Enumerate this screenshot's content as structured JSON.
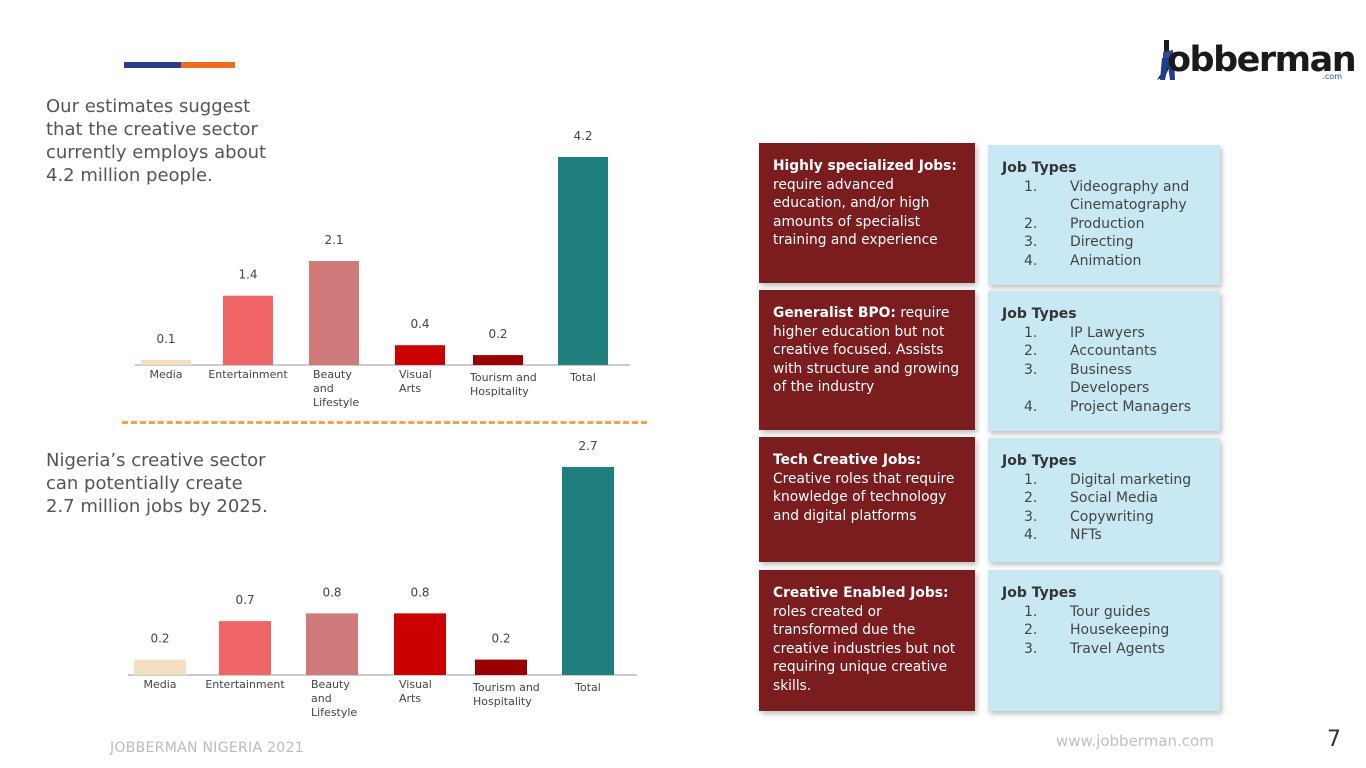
{
  "intro": {
    "text1": "Our estimates suggest that the creative sector currently employs about 4.2 million people.",
    "text2": "Nigeria’s creative sector can potentially create 2.7 million jobs by 2025."
  },
  "colors": {
    "media": "#f5dfc2",
    "entertainment": "#f06666",
    "beauty": "#cf7b7b",
    "visual_arts": "#cc0000",
    "tourism": "#990000",
    "total": "#1f7f7c",
    "card_red": "#7b1c1f",
    "card_blue": "#c8e8f3"
  },
  "logo": {
    "text": "obberman",
    "com": ".com"
  },
  "chart_data": [
    {
      "type": "bar",
      "categories": [
        "Media",
        "Entertainment",
        "Beauty and Lifestyle",
        "Visual Arts",
        "Tourism and Hospitality",
        "Total"
      ],
      "values": [
        0.1,
        1.4,
        2.1,
        0.4,
        0.2,
        4.2
      ],
      "value_labels": [
        "0.1",
        "1.4",
        "2.1",
        "0.4",
        "0.2",
        "4.2"
      ],
      "ylim": [
        0,
        4.2
      ],
      "grid": false
    },
    {
      "type": "bar",
      "categories": [
        "Media",
        "Entertainment",
        "Beauty and Lifestyle",
        "Visual Arts",
        "Tourism and Hospitality",
        "Total"
      ],
      "values": [
        0.2,
        0.7,
        0.8,
        0.8,
        0.2,
        2.7
      ],
      "value_labels": [
        "0.2",
        "0.7",
        "0.8",
        "0.8",
        "0.2",
        "2.7"
      ],
      "ylim": [
        0,
        2.7
      ],
      "grid": false
    }
  ],
  "cards": [
    {
      "title": "Highly specialized Jobs:",
      "desc": "require advanced education, and/or high amounts of specialist training and experience",
      "job_types_label": "Job Types",
      "jobs": [
        {
          "num": "1.",
          "text": "Videography and Cinematography"
        },
        {
          "num": "2.",
          "text": "Production"
        },
        {
          "num": "3.",
          "text": "Directing"
        },
        {
          "num": "4.",
          "text": "Animation"
        }
      ]
    },
    {
      "title": "Generalist BPO:",
      "desc": "require higher education but not creative focused. Assists with structure and growing of the industry",
      "job_types_label": "Job Types",
      "jobs": [
        {
          "num": "1.",
          "text": "IP Lawyers"
        },
        {
          "num": "2.",
          "text": "Accountants"
        },
        {
          "num": "3.",
          "text": "Business Developers"
        },
        {
          "num": "4.",
          "text": "Project Managers"
        }
      ]
    },
    {
      "title": "Tech Creative Jobs:",
      "desc": "Creative roles that require knowledge of technology and digital platforms",
      "job_types_label": "Job Types",
      "jobs": [
        {
          "num": "1.",
          "text": "Digital marketing"
        },
        {
          "num": "2.",
          "text": "Social Media"
        },
        {
          "num": "3.",
          "text": "Copywriting"
        },
        {
          "num": "4.",
          "text": "NFTs"
        }
      ]
    },
    {
      "title": "Creative Enabled Jobs:",
      "desc": "roles created or transformed due the creative industries but not requiring unique creative skills.",
      "job_types_label": "Job Types",
      "jobs": [
        {
          "num": "1.",
          "text": "Tour guides"
        },
        {
          "num": "2.",
          "text": "Housekeeping"
        },
        {
          "num": "3.",
          "text": "Travel Agents"
        }
      ]
    }
  ],
  "footer": {
    "left": "JOBBERMAN NIGERIA 2021",
    "url": "www.jobberman.com",
    "page_number": "7"
  }
}
